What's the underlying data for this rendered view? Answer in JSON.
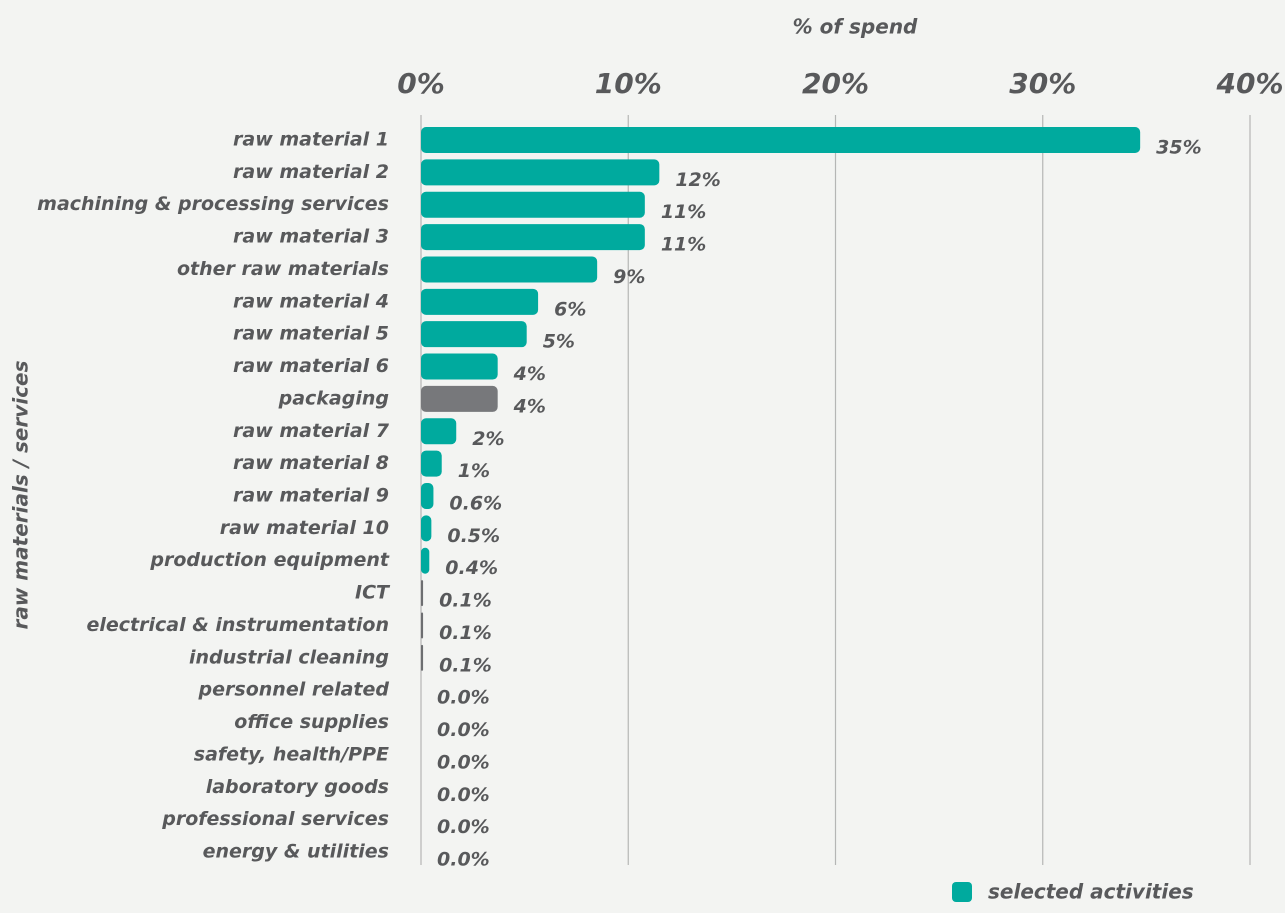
{
  "chart_data": {
    "type": "barh",
    "title": "% of spend",
    "y_axis_label": "raw materials / services",
    "categories": [
      "raw material 1",
      "raw material 2",
      "machining & processing services",
      "raw material 3",
      "other raw materials",
      "raw material 4",
      "raw material 5",
      "raw material 6",
      "packaging",
      "raw material 7",
      "raw material 8",
      "raw material 9",
      "raw material 10",
      "production equipment",
      "ICT",
      "electrical & instrumentation",
      "industrial cleaning",
      "personnel related",
      "office supplies",
      "safety, health/PPE",
      "laboratory goods",
      "professional services",
      "energy & utilities"
    ],
    "series": [
      {
        "name": "selected activities",
        "color": "#00aa9e",
        "values": [
          34.7,
          11.5,
          10.8,
          10.8,
          8.5,
          5.65,
          5.1,
          3.7,
          3.7,
          1.7,
          1.0,
          0.6,
          0.5,
          0.4,
          0.1,
          0.1,
          0.1,
          0,
          0,
          0,
          0,
          0,
          0
        ],
        "value_labels": [
          "35%",
          "12%",
          "11%",
          "11%",
          "9%",
          "6%",
          "5%",
          "4%",
          "4%",
          "2%",
          "1%",
          "0.6%",
          "0.5%",
          "0.4%",
          "0.1%",
          "0.1%",
          "0.1%",
          "0.0%",
          "0.0%",
          "0.0%",
          "0.0%",
          "0.0%",
          "0.0%"
        ],
        "colors": [
          "#00aa9e",
          "#00aa9e",
          "#00aa9e",
          "#00aa9e",
          "#00aa9e",
          "#00aa9e",
          "#00aa9e",
          "#00aa9e",
          "#77787b",
          "#00aa9e",
          "#00aa9e",
          "#00aa9e",
          "#00aa9e",
          "#00aa9e",
          "#6d6e71",
          "#6d6e71",
          "#6d6e71",
          "#00aa9e",
          "#00aa9e",
          "#00aa9e",
          "#00aa9e",
          "#00aa9e",
          "#00aa9e"
        ]
      }
    ],
    "xlim": [
      0,
      40
    ],
    "xticks": [
      {
        "value": 0,
        "label": "0%"
      },
      {
        "value": 10,
        "label": "10%"
      },
      {
        "value": 20,
        "label": "20%"
      },
      {
        "value": 30,
        "label": "30%"
      },
      {
        "value": 40,
        "label": "40%"
      }
    ],
    "grid": true,
    "legend": "bottom-right"
  }
}
